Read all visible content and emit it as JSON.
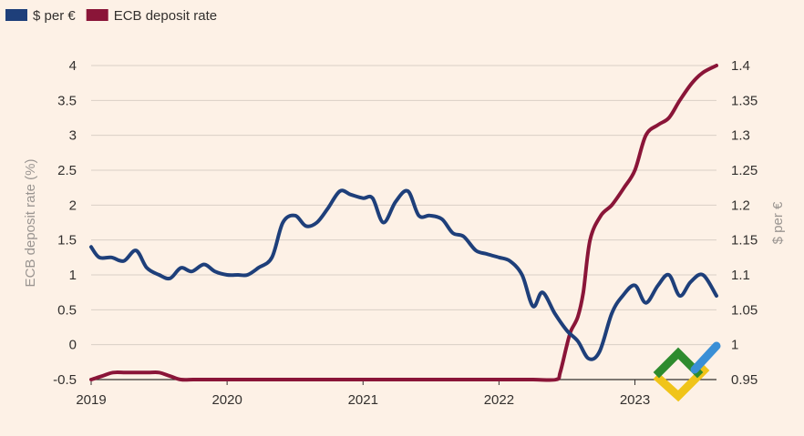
{
  "chart_data": {
    "type": "line",
    "legend": {
      "placement": "top-left",
      "items": [
        {
          "label": "$ per €",
          "color": "#1e3f7a"
        },
        {
          "label": "ECB deposit rate",
          "color": "#8a1538"
        }
      ]
    },
    "x_axis": {
      "range": [
        2019.0,
        2023.6
      ],
      "ticks": [
        2019,
        2020,
        2021,
        2022,
        2023
      ],
      "tick_labels": [
        "2019",
        "2020",
        "2021",
        "2022",
        "2023"
      ]
    },
    "y_left": {
      "label": "ECB deposit rate (%)",
      "range": [
        -0.5,
        4
      ],
      "ticks": [
        -0.5,
        0,
        0.5,
        1,
        1.5,
        2,
        2.5,
        3,
        3.5,
        4
      ],
      "tick_labels": [
        "-0.5",
        "0",
        "0.5",
        "1",
        "1.5",
        "2",
        "2.5",
        "3",
        "3.5",
        "4"
      ]
    },
    "y_right": {
      "label": "$ per €",
      "range": [
        0.95,
        1.4
      ],
      "ticks": [
        0.95,
        1,
        1.05,
        1.1,
        1.15,
        1.2,
        1.25,
        1.3,
        1.35,
        1.4
      ],
      "tick_labels": [
        "0.95",
        "1",
        "1.05",
        "1.1",
        "1.15",
        "1.2",
        "1.25",
        "1.3",
        "1.35",
        "1.4"
      ]
    },
    "grid": "horizontal",
    "series": [
      {
        "name": "$ per €",
        "axis": "right",
        "color": "#1e3f7a",
        "x": [
          2019.0,
          2019.06,
          2019.15,
          2019.24,
          2019.33,
          2019.41,
          2019.5,
          2019.58,
          2019.66,
          2019.74,
          2019.83,
          2019.91,
          2020.0,
          2020.08,
          2020.15,
          2020.23,
          2020.33,
          2020.41,
          2020.5,
          2020.58,
          2020.66,
          2020.74,
          2020.83,
          2020.91,
          2021.0,
          2021.07,
          2021.15,
          2021.24,
          2021.33,
          2021.41,
          2021.49,
          2021.58,
          2021.66,
          2021.74,
          2021.83,
          2021.91,
          2022.0,
          2022.08,
          2022.17,
          2022.25,
          2022.32,
          2022.41,
          2022.5,
          2022.58,
          2022.66,
          2022.74,
          2022.83,
          2022.91,
          2023.0,
          2023.08,
          2023.17,
          2023.25,
          2023.33,
          2023.41,
          2023.5,
          2023.6
        ],
        "y": [
          1.14,
          1.125,
          1.125,
          1.12,
          1.135,
          1.11,
          1.1,
          1.095,
          1.11,
          1.105,
          1.115,
          1.105,
          1.1,
          1.1,
          1.1,
          1.11,
          1.125,
          1.175,
          1.185,
          1.17,
          1.175,
          1.195,
          1.22,
          1.215,
          1.21,
          1.21,
          1.175,
          1.205,
          1.22,
          1.185,
          1.185,
          1.18,
          1.16,
          1.155,
          1.135,
          1.13,
          1.125,
          1.12,
          1.1,
          1.055,
          1.075,
          1.045,
          1.02,
          1.005,
          0.98,
          0.99,
          1.045,
          1.07,
          1.085,
          1.06,
          1.085,
          1.1,
          1.07,
          1.09,
          1.1,
          1.07
        ]
      },
      {
        "name": "ECB deposit rate",
        "axis": "left",
        "color": "#8a1538",
        "x": [
          2019.0,
          2019.08,
          2019.16,
          2019.25,
          2019.33,
          2019.42,
          2019.5,
          2019.58,
          2019.66,
          2019.75,
          2019.83,
          2019.92,
          2020.0,
          2020.25,
          2020.5,
          2020.75,
          2021.0,
          2021.25,
          2021.5,
          2021.75,
          2022.0,
          2022.25,
          2022.42,
          2022.45,
          2022.5,
          2022.53,
          2022.58,
          2022.62,
          2022.67,
          2022.75,
          2022.83,
          2022.92,
          2023.0,
          2023.08,
          2023.17,
          2023.25,
          2023.33,
          2023.42,
          2023.5,
          2023.6
        ],
        "y": [
          -0.5,
          -0.45,
          -0.4,
          -0.4,
          -0.4,
          -0.4,
          -0.4,
          -0.45,
          -0.5,
          -0.5,
          -0.5,
          -0.5,
          -0.5,
          -0.5,
          -0.5,
          -0.5,
          -0.5,
          -0.5,
          -0.5,
          -0.5,
          -0.5,
          -0.5,
          -0.5,
          -0.4,
          0.0,
          0.2,
          0.4,
          0.75,
          1.5,
          1.85,
          2.0,
          2.25,
          2.5,
          3.0,
          3.15,
          3.25,
          3.5,
          3.75,
          3.9,
          4.0
        ]
      }
    ]
  }
}
